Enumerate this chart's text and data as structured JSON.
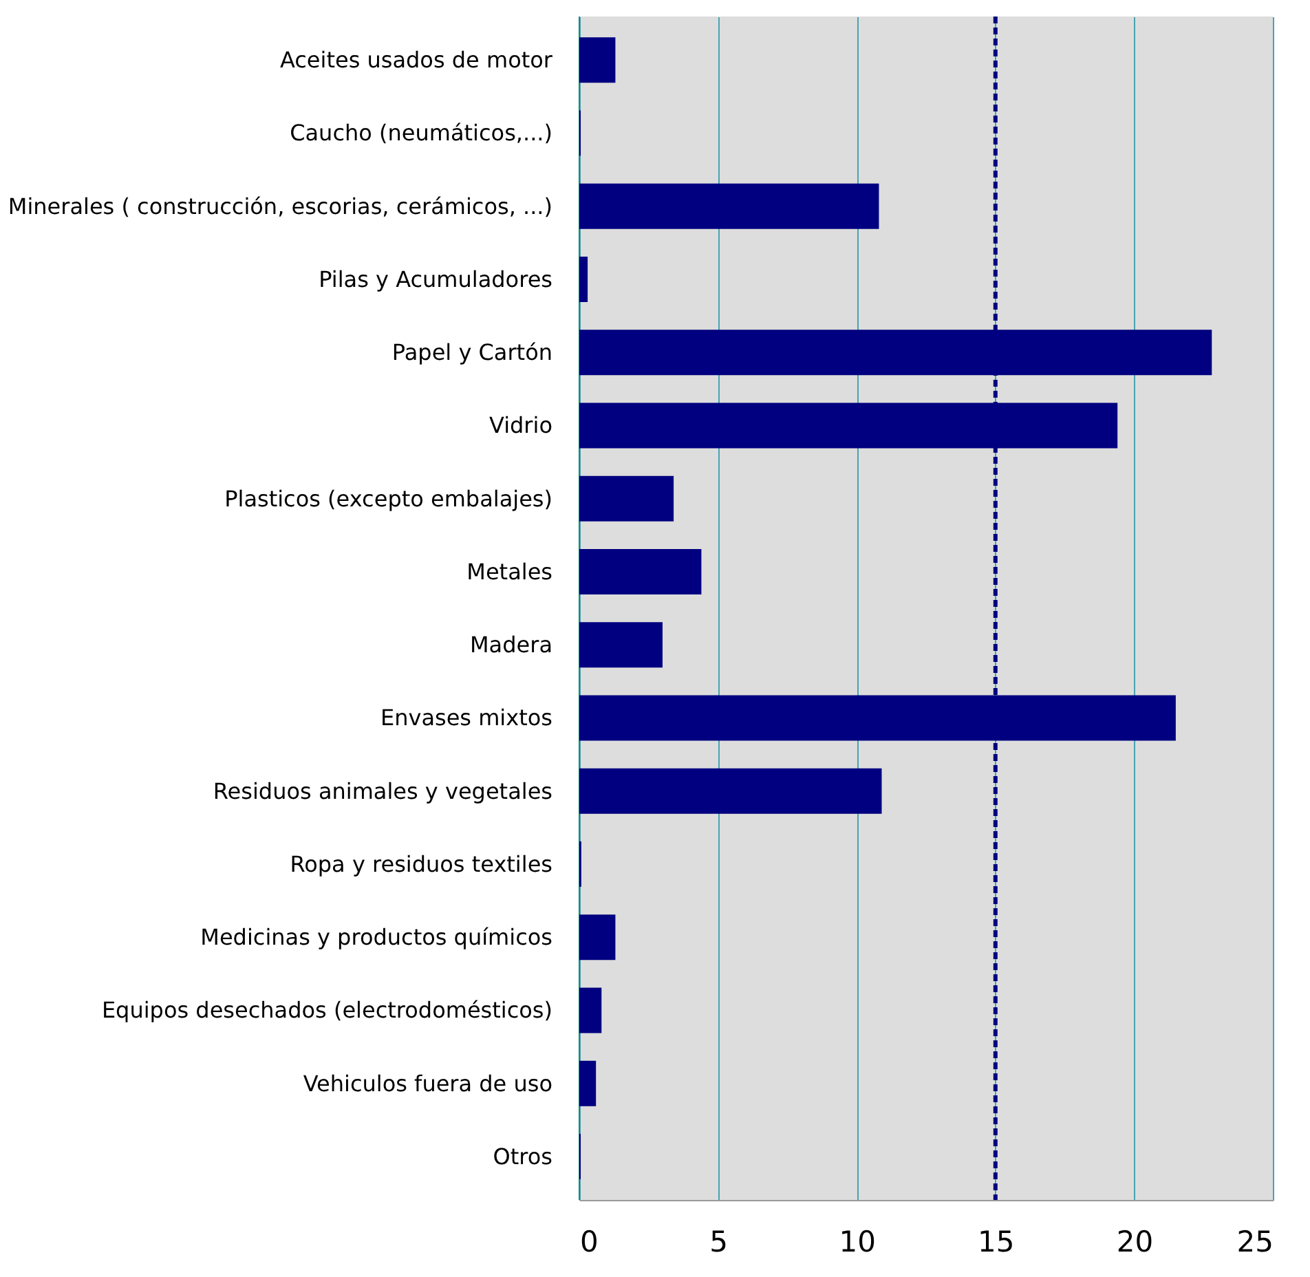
{
  "chart_data": {
    "type": "bar",
    "orientation": "horizontal",
    "categories": [
      "Aceites usados de motor",
      "Caucho (neumáticos,...)",
      "Minerales ( construcción, escorias, cerámicos, ...)",
      "Pilas y Acumuladores",
      "Papel y Cartón",
      "Vidrio",
      "Plasticos (excepto embalajes)",
      "Metales",
      "Madera",
      "Envases mixtos",
      "Residuos animales y vegetales",
      "Ropa y residuos textiles",
      "Medicinas y productos químicos",
      "Equipos desechados (electrodomésticos)",
      "Vehiculos fuera de uso",
      "Otros"
    ],
    "values": [
      1.3,
      0.05,
      10.8,
      0.3,
      22.8,
      19.4,
      3.4,
      4.4,
      3.0,
      21.5,
      10.9,
      0.07,
      1.3,
      0.8,
      0.6,
      0.05
    ],
    "color": "#000080",
    "xlim": [
      0,
      25
    ],
    "xticks": [
      0,
      5,
      10,
      15,
      20,
      25
    ],
    "grid": "x",
    "ref_lines": [
      {
        "axis": "x",
        "value": 15,
        "color": "#000080",
        "line_style": "dashed"
      }
    ]
  }
}
